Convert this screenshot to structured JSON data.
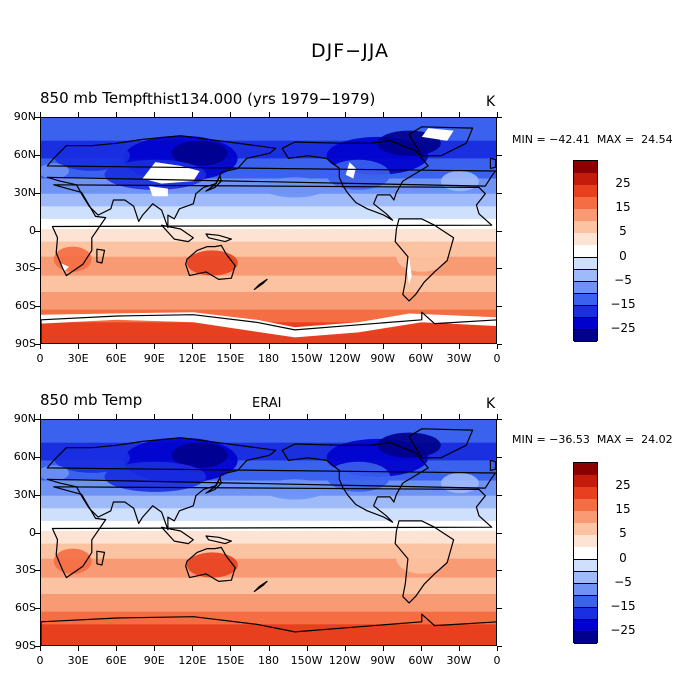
{
  "title": "DJF−JJA",
  "colorbar_colors": [
    "#00008b",
    "#0000cd",
    "#1a2fe0",
    "#3b62ee",
    "#6e93f5",
    "#9fbaf8",
    "#cfe0fc",
    "#ffffff",
    "#fde3d3",
    "#fcc3a3",
    "#f89a73",
    "#f46d43",
    "#e8401f",
    "#c51b0c",
    "#8b0000"
  ],
  "colorbar_labels": [
    "25",
    "15",
    "5",
    "0",
    "−5",
    "−15",
    "−25"
  ],
  "lat_labels": [
    "90N",
    "60N",
    "30N",
    "0",
    "30S",
    "60S",
    "90S"
  ],
  "lon_labels": [
    "0",
    "30E",
    "60E",
    "90E",
    "120E",
    "150E",
    "180",
    "150W",
    "120W",
    "90W",
    "60W",
    "30W",
    "0"
  ],
  "panels": [
    {
      "title": "850 mb Temp",
      "subtitle": "fthist134.000 (yrs 1979−1979)",
      "unit": "K",
      "minmax": "MIN = −42.41  MAX =  24.54",
      "min": -42.41,
      "max": 24.54,
      "missing_data": true
    },
    {
      "title": "850 mb Temp",
      "subtitle": "ERAI",
      "unit": "K",
      "minmax": "MIN = −36.53  MAX =  24.02",
      "min": -36.53,
      "max": 24.02,
      "missing_data": false
    }
  ],
  "chart_data": {
    "type": "heatmap",
    "field": "850 mb Temp",
    "season_difference": "DJF−JJA",
    "unit": "K",
    "contour_levels": [
      -30,
      -25,
      -20,
      -15,
      -10,
      -5,
      -2.5,
      0,
      2.5,
      5,
      10,
      15,
      20,
      25,
      30
    ],
    "panels": [
      {
        "name": "fthist134.000 (yrs 1979−1979)",
        "min": -42.41,
        "max": 24.54
      },
      {
        "name": "ERAI",
        "min": -36.53,
        "max": 24.02
      }
    ],
    "lat_range": [
      -90,
      90
    ],
    "lon_range": [
      0,
      360
    ]
  }
}
